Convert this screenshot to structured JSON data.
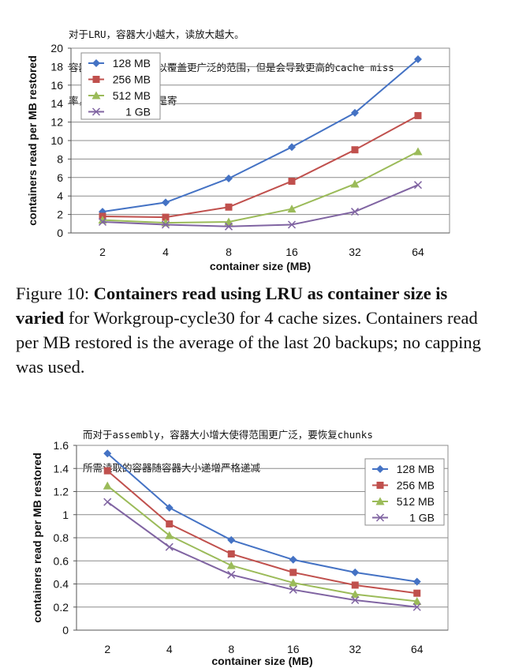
{
  "annotation_top": [
    "对于LRU，容器大小越大，读放大越大。",
    "容器大小越大虽然可以覆盖更广泛的范围，但是会导致更高的cache miss",
    "率，最终折合起来就是寄"
  ],
  "annotation_bottom": [
    "而对于assembly，容器大小增大使得范围更广泛，要恢复chunks",
    "所需读取的容器随容器大小递增严格递减"
  ],
  "caption": {
    "label": "Figure 10:",
    "bold": "Containers read using LRU as container size is varied",
    "rest": " for Workgroup-cycle30 for 4 cache sizes. Containers read per MB restored is the average of the last 20 backups; no capping was used."
  },
  "chart_data": [
    {
      "type": "line",
      "categories": [
        "2",
        "4",
        "8",
        "16",
        "32",
        "64"
      ],
      "xlabel": "container size (MB)",
      "ylabel": "containers read per MB restored",
      "ylim": [
        0,
        20
      ],
      "yticks": [
        "0",
        "2",
        "4",
        "6",
        "8",
        "10",
        "12",
        "14",
        "16",
        "18",
        "20"
      ],
      "legend_position": "top-left",
      "grid": true,
      "series": [
        {
          "name": "128 MB",
          "color": "#4472C4",
          "marker": "diamond",
          "values": [
            2.3,
            3.3,
            5.9,
            9.3,
            13.0,
            18.8
          ]
        },
        {
          "name": "256 MB",
          "color": "#C0504D",
          "marker": "square",
          "values": [
            1.8,
            1.7,
            2.8,
            5.6,
            9.0,
            12.7
          ]
        },
        {
          "name": "512 MB",
          "color": "#9BBB59",
          "marker": "triangle",
          "values": [
            1.4,
            1.1,
            1.2,
            2.6,
            5.3,
            8.8
          ]
        },
        {
          "name": "1 GB",
          "color": "#8064A2",
          "marker": "x",
          "values": [
            1.2,
            0.9,
            0.7,
            0.9,
            2.3,
            5.2
          ]
        }
      ]
    },
    {
      "type": "line",
      "categories": [
        "2",
        "4",
        "8",
        "16",
        "32",
        "64"
      ],
      "xlabel": "container size (MB)",
      "ylabel": "containers read per MB restored",
      "ylim": [
        0,
        1.6
      ],
      "yticks": [
        "0",
        "0.2",
        "0.4",
        "0.6",
        "0.8",
        "1",
        "1.2",
        "1.4",
        "1.6"
      ],
      "legend_position": "top-right",
      "grid": true,
      "series": [
        {
          "name": "128 MB",
          "color": "#4472C4",
          "marker": "diamond",
          "values": [
            1.53,
            1.06,
            0.78,
            0.61,
            0.5,
            0.42
          ]
        },
        {
          "name": "256 MB",
          "color": "#C0504D",
          "marker": "square",
          "values": [
            1.38,
            0.92,
            0.66,
            0.5,
            0.39,
            0.32
          ]
        },
        {
          "name": "512 MB",
          "color": "#9BBB59",
          "marker": "triangle",
          "values": [
            1.25,
            0.82,
            0.56,
            0.41,
            0.31,
            0.25
          ]
        },
        {
          "name": "1 GB",
          "color": "#8064A2",
          "marker": "x",
          "values": [
            1.11,
            0.72,
            0.48,
            0.35,
            0.26,
            0.2
          ]
        }
      ]
    }
  ]
}
